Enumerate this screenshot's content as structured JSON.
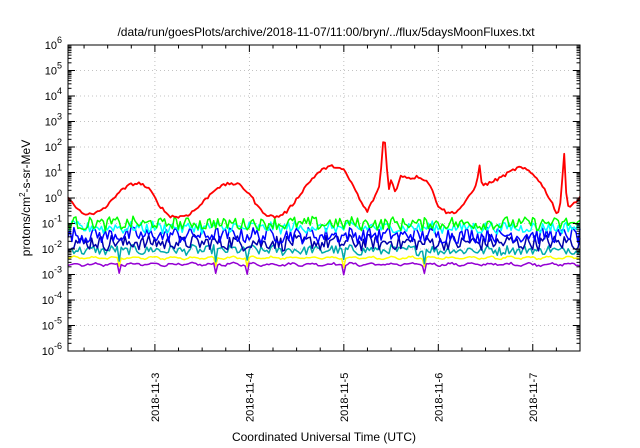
{
  "chart_data": {
    "type": "line",
    "title": "/data/run/goesPlots/archive/2018-11-07/11:00/bryn/../flux/5daysMoonFluxes.txt",
    "xlabel": "Coordinated Universal Time (UTC)",
    "ylabel_parts": {
      "before": "protons/cm",
      "sup": "2",
      "after": "-s-sr-MeV"
    },
    "y_scale": "log",
    "ylim_exponents": [
      -6,
      6
    ],
    "y_tick_labels": [
      {
        "base": "10",
        "exp": "-6"
      },
      {
        "base": "10",
        "exp": "-5"
      },
      {
        "base": "10",
        "exp": "-4"
      },
      {
        "base": "10",
        "exp": "-3"
      },
      {
        "base": "10",
        "exp": "-2"
      },
      {
        "base": "10",
        "exp": "-1"
      },
      {
        "base": "10",
        "exp": "0"
      },
      {
        "base": "10",
        "exp": "1"
      },
      {
        "base": "10",
        "exp": "2"
      },
      {
        "base": "10",
        "exp": "3"
      },
      {
        "base": "10",
        "exp": "4"
      },
      {
        "base": "10",
        "exp": "5"
      },
      {
        "base": "10",
        "exp": "6"
      }
    ],
    "x_range_days": [
      2.08,
      7.5
    ],
    "x_ticks": [
      {
        "day": 3,
        "label": "2018-11-3"
      },
      {
        "day": 4,
        "label": "2018-11-4"
      },
      {
        "day": 5,
        "label": "2018-11-5"
      },
      {
        "day": 6,
        "label": "2018-11-6"
      },
      {
        "day": 7,
        "label": "2018-11-7"
      }
    ],
    "grid": true,
    "series": [
      {
        "color": "#ff0000",
        "kind": "red",
        "dips": [
          [
            7.35,
            100
          ],
          [
            7.3,
            30
          ]
        ]
      },
      {
        "color": "#00ff00",
        "kind": "green",
        "base": 0.1,
        "amp": 0.25
      },
      {
        "color": "#00ffff",
        "kind": "cyan",
        "base": 0.07,
        "amp": 0.22
      },
      {
        "color": "#0000ff",
        "kind": "blue",
        "base": 0.035,
        "amp": 0.3
      },
      {
        "color": "#0000aa",
        "kind": "navy",
        "base": 0.018,
        "amp": 0.3
      },
      {
        "color": "#00aaaa",
        "kind": "teal",
        "base": 0.009,
        "amp": 0.18
      },
      {
        "color": "#ffff00",
        "kind": "yellow",
        "base": 0.0045,
        "amp": 0.03
      },
      {
        "color": "#9400d3",
        "kind": "purple",
        "base": 0.0025,
        "amp": 0.04
      }
    ],
    "red_anchors": [
      [
        2.08,
        1.2
      ],
      [
        2.15,
        0.45
      ],
      [
        2.25,
        0.25
      ],
      [
        2.35,
        0.22
      ],
      [
        2.5,
        0.5
      ],
      [
        2.6,
        1.5
      ],
      [
        2.75,
        3.5
      ],
      [
        2.85,
        3.8
      ],
      [
        2.95,
        2.0
      ],
      [
        3.05,
        0.5
      ],
      [
        3.15,
        0.2
      ],
      [
        3.25,
        0.18
      ],
      [
        3.35,
        0.22
      ],
      [
        3.45,
        0.4
      ],
      [
        3.55,
        1.0
      ],
      [
        3.65,
        2.5
      ],
      [
        3.8,
        3.8
      ],
      [
        3.9,
        3.2
      ],
      [
        4.0,
        1.5
      ],
      [
        4.1,
        0.4
      ],
      [
        4.2,
        0.2
      ],
      [
        4.3,
        0.18
      ],
      [
        4.4,
        0.3
      ],
      [
        4.5,
        0.9
      ],
      [
        4.6,
        3.0
      ],
      [
        4.7,
        8.0
      ],
      [
        4.8,
        15.0
      ],
      [
        4.9,
        18.0
      ],
      [
        5.0,
        12.0
      ],
      [
        5.1,
        3.0
      ],
      [
        5.2,
        0.5
      ],
      [
        5.25,
        0.3
      ],
      [
        5.32,
        1.0
      ],
      [
        5.38,
        3.0
      ],
      [
        5.42,
        250.0
      ],
      [
        5.44,
        150.0
      ],
      [
        5.47,
        2.0
      ],
      [
        5.5,
        5.0
      ],
      [
        5.55,
        1.5
      ],
      [
        5.6,
        8.0
      ],
      [
        5.7,
        6.0
      ],
      [
        5.8,
        7.0
      ],
      [
        5.9,
        4.0
      ],
      [
        6.0,
        0.5
      ],
      [
        6.1,
        0.25
      ],
      [
        6.2,
        0.3
      ],
      [
        6.3,
        0.8
      ],
      [
        6.4,
        3.0
      ],
      [
        6.44,
        25.0
      ],
      [
        6.46,
        3.0
      ],
      [
        6.55,
        4.0
      ],
      [
        6.65,
        6.0
      ],
      [
        6.75,
        10.0
      ],
      [
        6.85,
        16.0
      ],
      [
        6.95,
        12.0
      ],
      [
        7.05,
        6.0
      ],
      [
        7.15,
        1.5
      ],
      [
        7.22,
        0.5
      ],
      [
        7.26,
        0.2
      ],
      [
        7.3,
        0.9
      ],
      [
        7.33,
        80.0
      ],
      [
        7.36,
        0.6
      ],
      [
        7.4,
        0.5
      ],
      [
        7.5,
        1.0
      ]
    ]
  }
}
